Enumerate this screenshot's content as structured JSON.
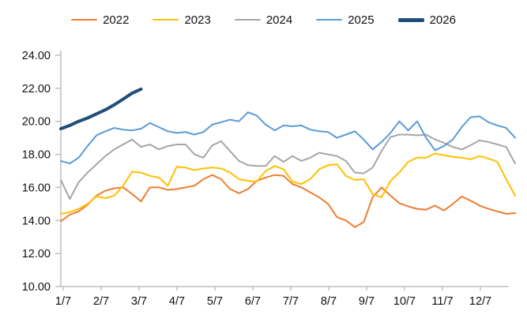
{
  "chart_data": {
    "type": "line",
    "title": "",
    "xlabel": "",
    "ylabel": "",
    "grid": false,
    "legend_position": "top",
    "background_color": "#ffffff",
    "axis_color": "#BFBFBF",
    "text_color": "#111111",
    "ylim": [
      10,
      24
    ],
    "y_ticks": [
      24,
      22,
      20,
      18,
      16,
      14,
      12,
      10
    ],
    "y_tick_labels": [
      "24.00",
      "22.00",
      "20.00",
      "18.00",
      "16.00",
      "14.00",
      "12.00",
      "10.00"
    ],
    "x_tick_labels": [
      "1/7",
      "2/7",
      "3/7",
      "4/7",
      "5/7",
      "6/7",
      "7/7",
      "8/7",
      "9/7",
      "10/7",
      "11/7",
      "12/7"
    ],
    "x_points": 52,
    "series": [
      {
        "name": "2022",
        "color": "#ED7D31",
        "line_width": 2,
        "values": [
          13.95,
          14.35,
          14.55,
          14.95,
          15.5,
          15.8,
          15.95,
          16.0,
          15.6,
          15.15,
          16.0,
          16.0,
          15.85,
          15.9,
          16.0,
          16.1,
          16.5,
          16.75,
          16.5,
          15.9,
          15.65,
          15.9,
          16.4,
          16.6,
          16.75,
          16.7,
          16.2,
          16.0,
          15.7,
          15.4,
          15.0,
          14.2,
          14.0,
          13.6,
          13.9,
          15.4,
          16.0,
          15.5,
          15.05,
          14.85,
          14.7,
          14.65,
          14.9,
          14.6,
          15.0,
          15.45,
          15.2,
          14.9,
          14.7,
          14.55,
          14.4,
          14.45
        ]
      },
      {
        "name": "2023",
        "color": "#FFC000",
        "line_width": 2,
        "values": [
          14.4,
          14.5,
          14.7,
          15.0,
          15.45,
          15.35,
          15.5,
          16.1,
          16.95,
          16.9,
          16.7,
          16.6,
          16.1,
          17.25,
          17.2,
          17.05,
          17.15,
          17.2,
          17.15,
          16.9,
          16.5,
          16.4,
          16.35,
          17.0,
          17.3,
          17.1,
          16.35,
          16.2,
          16.5,
          17.1,
          17.35,
          17.4,
          16.7,
          16.45,
          16.5,
          15.6,
          15.4,
          16.4,
          16.9,
          17.55,
          17.8,
          17.8,
          18.05,
          17.95,
          17.85,
          17.8,
          17.7,
          17.9,
          17.75,
          17.55,
          16.5,
          15.5
        ]
      },
      {
        "name": "2024",
        "color": "#A6A6A6",
        "line_width": 2,
        "values": [
          16.45,
          15.3,
          16.3,
          16.9,
          17.4,
          17.9,
          18.3,
          18.6,
          18.9,
          18.45,
          18.6,
          18.3,
          18.5,
          18.6,
          18.6,
          18.0,
          17.8,
          18.55,
          18.8,
          18.2,
          17.6,
          17.35,
          17.3,
          17.3,
          17.9,
          17.55,
          17.9,
          17.6,
          17.8,
          18.1,
          18.0,
          17.9,
          17.6,
          16.9,
          16.85,
          17.2,
          18.2,
          19.05,
          19.2,
          19.2,
          19.15,
          19.2,
          18.9,
          18.7,
          18.45,
          18.3,
          18.55,
          18.85,
          18.75,
          18.6,
          18.45,
          17.45
        ]
      },
      {
        "name": "2025",
        "color": "#5B9BD5",
        "line_width": 2,
        "values": [
          17.6,
          17.45,
          17.8,
          18.5,
          19.15,
          19.4,
          19.6,
          19.5,
          19.45,
          19.55,
          19.9,
          19.65,
          19.4,
          19.3,
          19.35,
          19.2,
          19.35,
          19.8,
          19.95,
          20.1,
          20.0,
          20.55,
          20.35,
          19.8,
          19.45,
          19.75,
          19.7,
          19.75,
          19.5,
          19.4,
          19.35,
          19.0,
          19.2,
          19.4,
          18.9,
          18.3,
          18.75,
          19.3,
          20.0,
          19.45,
          20.0,
          19.0,
          18.25,
          18.5,
          18.9,
          19.65,
          20.25,
          20.3,
          19.95,
          19.75,
          19.6,
          19.0
        ]
      },
      {
        "name": "2026",
        "color": "#1F4E79",
        "line_width": 4,
        "values": [
          19.55,
          19.75,
          20.0,
          20.2,
          20.45,
          20.7,
          21.0,
          21.35,
          21.7,
          21.95
        ]
      }
    ]
  }
}
